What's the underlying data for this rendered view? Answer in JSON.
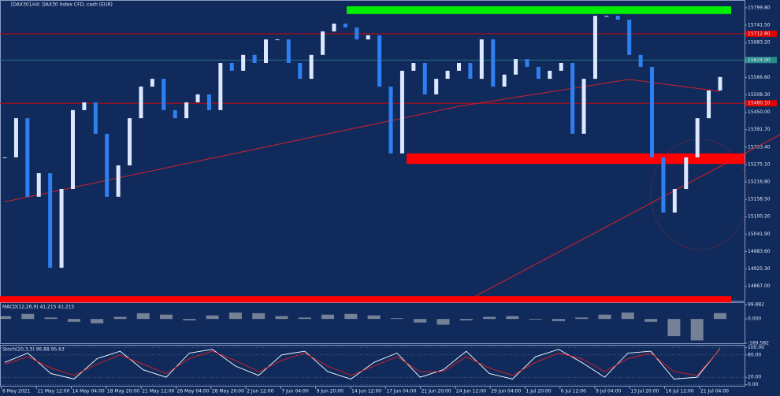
{
  "chart_data": [
    {
      "type": "candlestick",
      "title": "[DAX30],H4: DAX30 Index CFD, cash (EUR)",
      "values": [
        15299,
        15430,
        15167,
        15246,
        14929,
        15193,
        15457,
        15483,
        15378,
        15167,
        15272,
        15430,
        15536,
        15562,
        15457,
        15430,
        15483,
        15510,
        15457,
        15615,
        15589,
        15642,
        15615,
        15694,
        15694,
        15615,
        15562,
        15642,
        15721,
        15747,
        15734,
        15694,
        15708,
        15536,
        15312,
        15589,
        15615,
        15510,
        15562,
        15589,
        15615,
        15562,
        15694,
        15536,
        15576,
        15628,
        15602,
        15562,
        15589,
        15615,
        15378,
        15562,
        15773,
        15773,
        15760,
        15642,
        15602,
        15299,
        15114,
        15193,
        15299,
        15430,
        15523,
        15568
      ],
      "ma_values": [
        15150,
        15158,
        15166,
        15174,
        15182,
        15190,
        15198,
        15206,
        15214,
        15222,
        15230,
        15238,
        15246,
        15254,
        15262,
        15270,
        15278,
        15286,
        15294,
        15302,
        15310,
        15318,
        15326,
        15334,
        15342,
        15350,
        15358,
        15366,
        15374,
        15382,
        15390,
        15398,
        15406,
        15414,
        15422,
        15430,
        15438,
        15446,
        15454,
        15462,
        15470,
        15476,
        15482,
        15488,
        15494,
        15500,
        15506,
        15512,
        15518,
        15524,
        15530,
        15536,
        15542,
        15548,
        15554,
        15560,
        15555,
        15550,
        15545,
        15540,
        15535,
        15530,
        15525,
        15520
      ],
      "color": "#2f7ff0",
      "ma_color": "#d0202a",
      "ylim": [
        14816,
        15826
      ],
      "yticks": [
        {
          "value": 15799.8,
          "label": "15799.80"
        },
        {
          "value": 15741.5,
          "label": "15741.50"
        },
        {
          "value": 15683.2,
          "label": "15683.20"
        },
        {
          "value": 15624.9,
          "label": "15624.90"
        },
        {
          "value": 15566.6,
          "label": "15566.60"
        },
        {
          "value": 15508.3,
          "label": "15508.30"
        },
        {
          "value": 15450,
          "label": "15450.00"
        },
        {
          "value": 15391.7,
          "label": "15391.70"
        },
        {
          "value": 15333.4,
          "label": "15333.40"
        },
        {
          "value": 15275.1,
          "label": "15275.10"
        },
        {
          "value": 15216.8,
          "label": "15216.80"
        },
        {
          "value": 15158.5,
          "label": "15158.50"
        },
        {
          "value": 15100.2,
          "label": "15100.20"
        },
        {
          "value": 15041.9,
          "label": "15041.90"
        },
        {
          "value": 14983.6,
          "label": "14983.60"
        },
        {
          "value": 14925.3,
          "label": "14925.30"
        },
        {
          "value": 14867,
          "label": "14867.00"
        }
      ],
      "levels": [
        {
          "value": 15712.8,
          "label": "15712.80",
          "color": "#e00000"
        },
        {
          "value": 15624.9,
          "label": "15624.90",
          "color": "#2a8c8c"
        },
        {
          "value": 15480.1,
          "label": "15480.10",
          "color": "#e00000"
        }
      ],
      "zones": [
        {
          "from": 15779,
          "to": 15805,
          "color": "#00ee00"
        },
        {
          "from": 15277,
          "to": 15312,
          "color": "#ff0000"
        },
        {
          "from": 14813,
          "to": 14834,
          "color": "#ff0000"
        }
      ],
      "trendline": [
        14829,
        15312
      ],
      "time_labels": [
        "6 May 2021",
        "11 May 12:00",
        "14 May 04:00",
        "18 May 20:00",
        "21 May 12:00",
        "26 May 04:00",
        "28 May 20:00",
        "2 Jun 12:00",
        "7 Jun 04:00",
        "9 Jun 20:00",
        "14 Jun 12:00",
        "17 Jun 04:00",
        "21 Jun 20:00",
        "24 Jun 12:00",
        "29 Jun 04:00",
        "1 Jul 20:00",
        "6 Jul 12:00",
        "9 Jul 04:00",
        "13 Jul 20:00",
        "16 Jul 12:00",
        "21 Jul 04:00"
      ]
    },
    {
      "type": "histogram",
      "title": "MACD(12,26,9) 41.215 41.215",
      "values": [
        20,
        35,
        10,
        -20,
        -30,
        15,
        40,
        30,
        -10,
        25,
        45,
        40,
        20,
        10,
        30,
        35,
        25,
        5,
        -25,
        -40,
        -10,
        15,
        20,
        -5,
        -15,
        10,
        30,
        45,
        -20,
        -120,
        -150,
        41
      ],
      "color": "#c8c8c8",
      "ylim": [
        -175,
        110.7
      ],
      "yticks": [
        99.882,
        {
          "value": 0,
          "label": "0.000"
        },
        -169.582
      ]
    },
    {
      "type": "line",
      "title": "Stoch(20,3,3) 96.88 95.63",
      "series": [
        {
          "color": "#ffffff",
          "values": [
            60,
            85,
            30,
            15,
            70,
            90,
            40,
            20,
            85,
            95,
            50,
            25,
            80,
            90,
            35,
            15,
            60,
            85,
            20,
            40,
            90,
            30,
            15,
            75,
            95,
            60,
            20,
            85,
            90,
            15,
            20,
            96.88
          ]
        },
        {
          "color": "#e02020",
          "values": [
            55,
            75,
            45,
            25,
            55,
            80,
            55,
            30,
            70,
            90,
            65,
            35,
            65,
            85,
            50,
            25,
            50,
            75,
            35,
            35,
            75,
            45,
            25,
            60,
            85,
            70,
            35,
            70,
            85,
            35,
            25,
            95.63
          ]
        }
      ],
      "ylim": [
        -5,
        105
      ],
      "yticks": [
        {
          "value": 100,
          "label": "100.00"
        },
        {
          "value": 80,
          "label": "80.00"
        },
        {
          "value": 20,
          "label": "20.00"
        },
        {
          "value": 0,
          "label": "0.00"
        }
      ]
    }
  ]
}
